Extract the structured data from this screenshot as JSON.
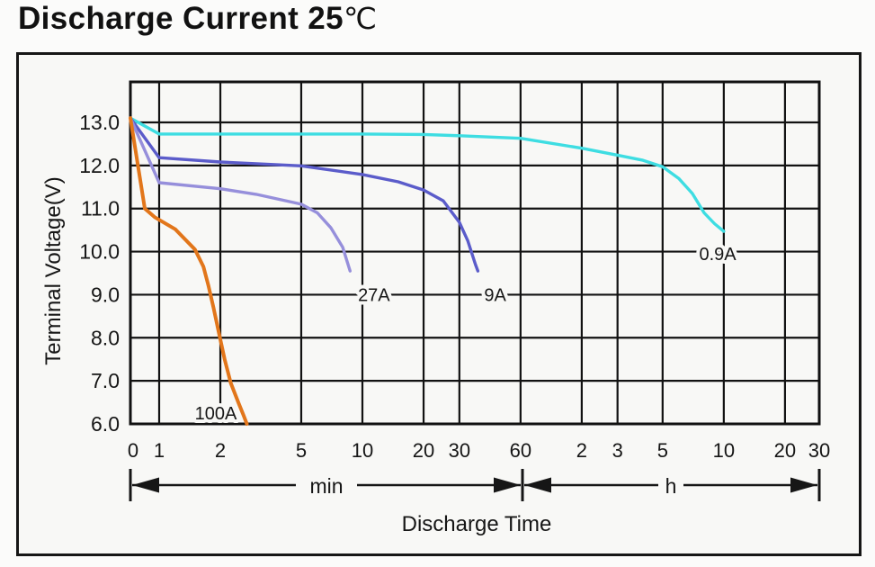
{
  "title": {
    "main": "Discharge Current 25",
    "degree": "℃"
  },
  "chart_data": {
    "type": "line",
    "title": "Discharge Current 25℃",
    "xlabel": "Discharge Time",
    "ylabel": "Terminal Voltage(V)",
    "x_scale": "log",
    "x_unit": "minutes",
    "ylim": [
      6.0,
      13.5
    ],
    "grid": true,
    "x_axis": {
      "sections": [
        {
          "unit": "min",
          "ticks": [
            {
              "t": 0,
              "label": "0"
            },
            {
              "t": 1,
              "label": "1"
            },
            {
              "t": 2,
              "label": "2"
            },
            {
              "t": 5,
              "label": "5"
            },
            {
              "t": 10,
              "label": "10"
            },
            {
              "t": 20,
              "label": "20"
            },
            {
              "t": 30,
              "label": "30"
            },
            {
              "t": 60,
              "label": "60"
            }
          ]
        },
        {
          "unit": "h",
          "ticks": [
            {
              "t": 120,
              "label": "2"
            },
            {
              "t": 180,
              "label": "3"
            },
            {
              "t": 300,
              "label": "5"
            },
            {
              "t": 600,
              "label": "10"
            },
            {
              "t": 1200,
              "label": "20"
            },
            {
              "t": 1800,
              "label": "30"
            }
          ]
        }
      ]
    },
    "y_axis": {
      "ticks": [
        {
          "v": 13,
          "label": "13.0"
        },
        {
          "v": 12,
          "label": "12.0"
        },
        {
          "v": 11,
          "label": "11.0"
        },
        {
          "v": 10,
          "label": "10.0"
        },
        {
          "v": 9,
          "label": "9.0"
        },
        {
          "v": 8,
          "label": "8.0"
        },
        {
          "v": 7,
          "label": "7.0"
        },
        {
          "v": 6,
          "label": "6.0"
        }
      ]
    },
    "series": [
      {
        "name": "0.9A",
        "color": "#3edde2",
        "stroke_width": 3.4,
        "label_pos": {
          "t": 560,
          "v": 9.95
        },
        "points": [
          [
            0,
            13.1
          ],
          [
            1,
            12.73
          ],
          [
            2,
            12.73
          ],
          [
            5,
            12.73
          ],
          [
            10,
            12.73
          ],
          [
            20,
            12.72
          ],
          [
            30,
            12.69
          ],
          [
            60,
            12.63
          ],
          [
            120,
            12.4
          ],
          [
            180,
            12.24
          ],
          [
            240,
            12.12
          ],
          [
            300,
            11.97
          ],
          [
            360,
            11.7
          ],
          [
            420,
            11.35
          ],
          [
            480,
            10.9
          ],
          [
            540,
            10.65
          ],
          [
            600,
            10.47
          ]
        ]
      },
      {
        "name": "9A",
        "color": "#5b5cca",
        "stroke_width": 3.4,
        "label_pos": {
          "t": 45,
          "v": 9.0
        },
        "points": [
          [
            0,
            13.1
          ],
          [
            1,
            12.18
          ],
          [
            2,
            12.08
          ],
          [
            5,
            11.99
          ],
          [
            10,
            11.79
          ],
          [
            15,
            11.62
          ],
          [
            20,
            11.43
          ],
          [
            25,
            11.18
          ],
          [
            30,
            10.68
          ],
          [
            33,
            10.25
          ],
          [
            36,
            9.7
          ],
          [
            37,
            9.55
          ]
        ]
      },
      {
        "name": "27A",
        "color": "#968fdb",
        "stroke_width": 3.4,
        "label_pos": {
          "t": 11.4,
          "v": 9.0
        },
        "points": [
          [
            0,
            13.1
          ],
          [
            1,
            11.6
          ],
          [
            2,
            11.46
          ],
          [
            3,
            11.33
          ],
          [
            5,
            11.1
          ],
          [
            6,
            10.9
          ],
          [
            7,
            10.55
          ],
          [
            8,
            10.1
          ],
          [
            8.7,
            9.55
          ]
        ]
      },
      {
        "name": "100A",
        "color": "#e2761b",
        "stroke_width": 4,
        "label_pos": {
          "t": 1.9,
          "v": 6.25
        },
        "points": [
          [
            0,
            13.1
          ],
          [
            0.85,
            11.0
          ],
          [
            0.95,
            10.8
          ],
          [
            1.2,
            10.52
          ],
          [
            1.5,
            10.05
          ],
          [
            1.65,
            9.65
          ],
          [
            1.75,
            9.2
          ],
          [
            1.85,
            8.7
          ],
          [
            1.95,
            8.2
          ],
          [
            2.1,
            7.5
          ],
          [
            2.25,
            6.95
          ],
          [
            2.45,
            6.5
          ],
          [
            2.6,
            6.2
          ],
          [
            2.7,
            6.0
          ]
        ]
      }
    ]
  }
}
